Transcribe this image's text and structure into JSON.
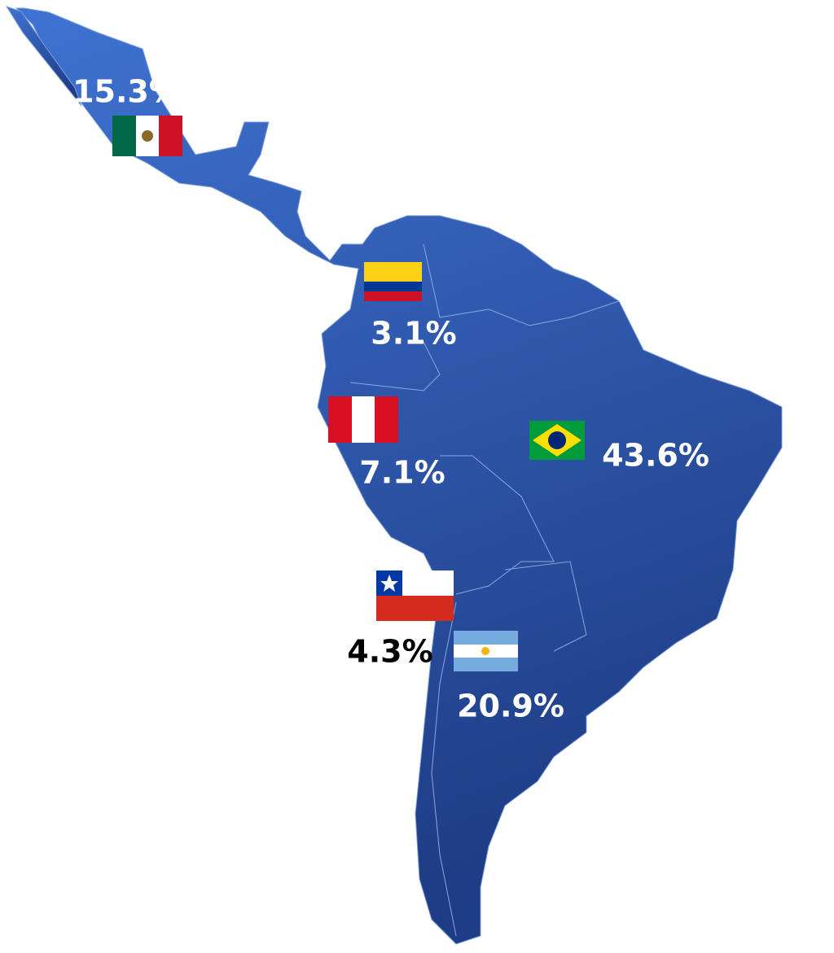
{
  "regions": [
    {
      "label": "15.3%"
    },
    {
      "label": "3.1%"
    },
    {
      "label": "7.1%"
    },
    {
      "label": "43.6%"
    },
    {
      "label": "4.3%"
    },
    {
      "label": "20.9%"
    }
  ]
}
